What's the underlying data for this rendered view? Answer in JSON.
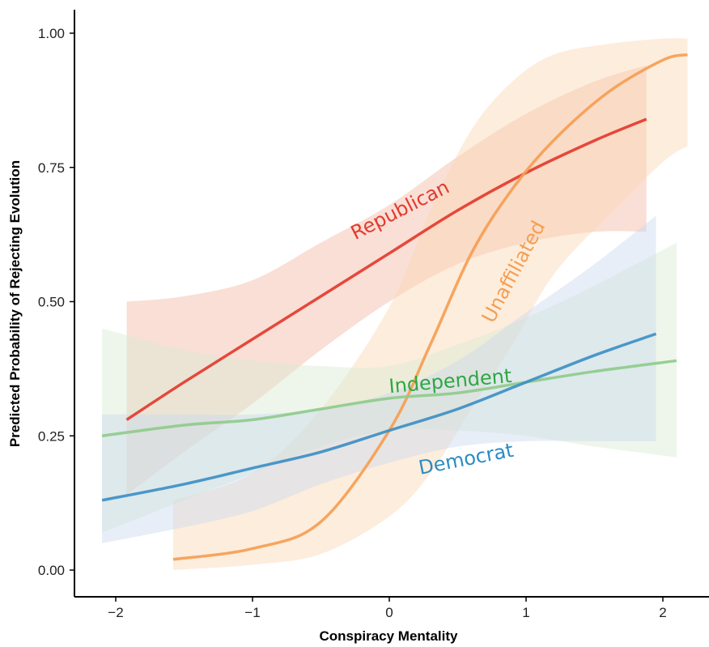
{
  "chart_data": {
    "type": "line",
    "title": "",
    "xlabel": "Conspiracy Mentality",
    "ylabel": "Predicted Probability of Rejecting Evolution",
    "xlim": [
      -2.3,
      2.3
    ],
    "ylim": [
      -0.05,
      1.05
    ],
    "x_ticks": [
      -2,
      -1,
      0,
      1,
      2
    ],
    "x_tick_labels": [
      "−2",
      "−1",
      "0",
      "1",
      "2"
    ],
    "y_ticks": [
      0,
      0.25,
      0.5,
      0.75,
      1.0
    ],
    "y_tick_labels": [
      "0.00",
      "0.25",
      "0.50",
      "0.75",
      "1.00"
    ],
    "grid": false,
    "legend": "none (direct labels)",
    "series": [
      {
        "name": "Republican",
        "color": "#e33b2e",
        "band_color": "#f2b9a3",
        "x": [
          -1.92,
          -1.5,
          -1.0,
          -0.5,
          0.0,
          0.5,
          1.0,
          1.5,
          1.88
        ],
        "y": [
          0.28,
          0.35,
          0.43,
          0.51,
          0.59,
          0.67,
          0.74,
          0.8,
          0.84
        ],
        "lower": [
          0.14,
          0.22,
          0.31,
          0.41,
          0.5,
          0.57,
          0.61,
          0.63,
          0.63
        ],
        "upper": [
          0.5,
          0.51,
          0.54,
          0.61,
          0.68,
          0.77,
          0.85,
          0.91,
          0.94
        ]
      },
      {
        "name": "Unaffiliated",
        "color": "#f59e52",
        "band_color": "#fbd7b4",
        "x": [
          -1.58,
          -1.0,
          -0.5,
          0.0,
          0.3,
          0.6,
          0.9,
          1.2,
          1.6,
          2.0,
          2.18
        ],
        "y": [
          0.02,
          0.04,
          0.09,
          0.26,
          0.42,
          0.59,
          0.71,
          0.8,
          0.89,
          0.95,
          0.96
        ],
        "lower": [
          0.0,
          0.01,
          0.03,
          0.1,
          0.18,
          0.3,
          0.42,
          0.55,
          0.66,
          0.76,
          0.79
        ],
        "upper": [
          0.13,
          0.18,
          0.3,
          0.49,
          0.67,
          0.82,
          0.91,
          0.96,
          0.98,
          0.99,
          0.99
        ]
      },
      {
        "name": "Independent",
        "color": "#8fcb8c",
        "band_color": "#d9ecd2",
        "x": [
          -2.1,
          -1.5,
          -1.0,
          -0.5,
          0.0,
          0.5,
          1.0,
          1.5,
          2.1
        ],
        "y": [
          0.25,
          0.27,
          0.28,
          0.3,
          0.32,
          0.33,
          0.35,
          0.37,
          0.39
        ],
        "lower": [
          0.07,
          0.13,
          0.18,
          0.23,
          0.26,
          0.26,
          0.25,
          0.23,
          0.21
        ],
        "upper": [
          0.45,
          0.41,
          0.39,
          0.38,
          0.38,
          0.42,
          0.47,
          0.53,
          0.61
        ]
      },
      {
        "name": "Democrat",
        "color": "#3d8fc4",
        "band_color": "#c9d9ee",
        "x": [
          -2.1,
          -1.5,
          -1.0,
          -0.5,
          0.0,
          0.5,
          1.0,
          1.5,
          1.95
        ],
        "y": [
          0.13,
          0.16,
          0.19,
          0.22,
          0.26,
          0.3,
          0.35,
          0.4,
          0.44
        ],
        "lower": [
          0.05,
          0.08,
          0.11,
          0.16,
          0.2,
          0.23,
          0.24,
          0.24,
          0.24
        ],
        "upper": [
          0.29,
          0.29,
          0.29,
          0.3,
          0.33,
          0.39,
          0.48,
          0.57,
          0.66
        ]
      }
    ],
    "annotations": [
      {
        "text": "Republican",
        "color": "#e33b2e",
        "x": 0.1,
        "y": 0.66,
        "rotate": -27
      },
      {
        "text": "Unaffiliated",
        "color": "#f59e52",
        "x": 0.95,
        "y": 0.55,
        "rotate": -62
      },
      {
        "text": "Independent",
        "color": "#2ca843",
        "x": 0.45,
        "y": 0.34,
        "rotate": -5
      },
      {
        "text": "Democrat",
        "color": "#2b8cc3",
        "x": 0.57,
        "y": 0.195,
        "rotate": -11
      }
    ]
  }
}
